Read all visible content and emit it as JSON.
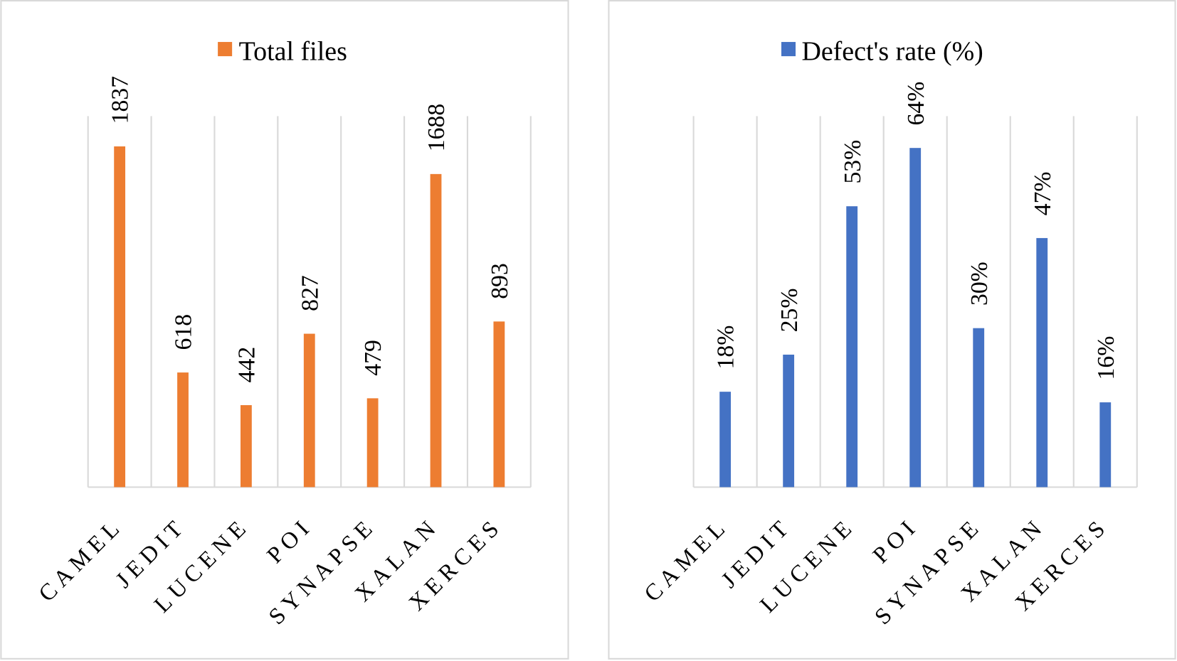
{
  "chart_data": [
    {
      "type": "bar",
      "legend": "Total files",
      "categories": [
        "CAMEL",
        "JEDIT",
        "LUCENE",
        "POI",
        "SYNAPSE",
        "XALAN",
        "XERCES"
      ],
      "values": [
        1837,
        618,
        442,
        827,
        479,
        1688,
        893
      ],
      "value_labels": [
        "1837",
        "618",
        "442",
        "827",
        "479",
        "1688",
        "893"
      ],
      "ylim": [
        0,
        2000
      ],
      "grid": "vertical",
      "legend_position": "top-center",
      "color": "#ED7D31"
    },
    {
      "type": "bar",
      "legend": "Defect's rate (%)",
      "categories": [
        "CAMEL",
        "JEDIT",
        "LUCENE",
        "POI",
        "SYNAPSE",
        "XALAN",
        "XERCES"
      ],
      "values": [
        18,
        25,
        53,
        64,
        30,
        47,
        16
      ],
      "value_labels": [
        "18%",
        "25%",
        "53%",
        "64%",
        "30%",
        "47%",
        "16%"
      ],
      "ylim": [
        0,
        70
      ],
      "grid": "vertical",
      "legend_position": "top-center",
      "color": "#4472C4"
    }
  ]
}
